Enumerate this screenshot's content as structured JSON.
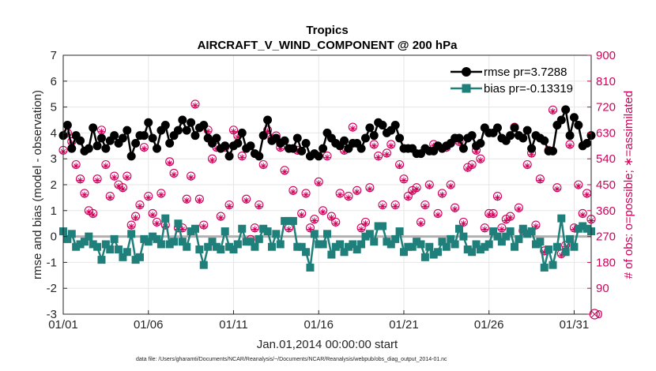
{
  "chart_data": {
    "type": "line",
    "title": "Tropics",
    "subtitle": "AIRCRAFT_V_WIND_COMPONENT @ 200 hPa",
    "xlabel": "Jan.01,2014 00:00:00 start",
    "ylabel": "rmse and bias (model - observation)",
    "y2label": "# of obs: o=possible; ∗=assimilated",
    "footnote": "data file: /Users/gharamti/Documents/NCAR/Reanalysis/~/Documents/NCAR/Reanalysis/webpub/obs_diag_output_2014-01.nc",
    "xlim": [
      0,
      31
    ],
    "ylim": [
      -3,
      7
    ],
    "y2lim": [
      0,
      900
    ],
    "x_ticks": [
      0,
      5,
      10,
      15,
      20,
      25,
      30
    ],
    "x_tick_labels": [
      "01/01",
      "01/06",
      "01/11",
      "01/16",
      "01/21",
      "01/26",
      "01/31"
    ],
    "y_ticks": [
      -3,
      -2,
      -1,
      0,
      1,
      2,
      3,
      4,
      5,
      6,
      7
    ],
    "y_tick_labels": [
      "-3",
      "-2",
      "-1",
      "0",
      "1",
      "2",
      "3",
      "4",
      "5",
      "6",
      "7"
    ],
    "y2_ticks": [
      0,
      90,
      180,
      270,
      360,
      450,
      540,
      630,
      720,
      810,
      900
    ],
    "y2_tick_labels": [
      "0",
      "90",
      "180",
      "270",
      "360",
      "450",
      "540",
      "630",
      "720",
      "810",
      "900"
    ],
    "grid": true,
    "legend_position": "top-right",
    "series": [
      {
        "name": "rmse pr=3.7288",
        "axis": "left",
        "color": "#000000",
        "marker": "circle",
        "x": [
          0.0,
          0.25,
          0.5,
          0.75,
          1.0,
          1.25,
          1.5,
          1.75,
          2.0,
          2.25,
          2.5,
          2.75,
          3.0,
          3.25,
          3.5,
          3.75,
          4.0,
          4.25,
          4.5,
          4.75,
          5.0,
          5.25,
          5.5,
          5.75,
          6.0,
          6.25,
          6.5,
          6.75,
          7.0,
          7.25,
          7.5,
          7.75,
          8.0,
          8.25,
          8.5,
          8.75,
          9.0,
          9.25,
          9.5,
          9.75,
          10.0,
          10.25,
          10.5,
          10.75,
          11.0,
          11.25,
          11.5,
          11.75,
          12.0,
          12.25,
          12.5,
          12.75,
          13.0,
          13.25,
          13.5,
          13.75,
          14.0,
          14.25,
          14.5,
          14.75,
          15.0,
          15.25,
          15.5,
          15.75,
          16.0,
          16.25,
          16.5,
          16.75,
          17.0,
          17.25,
          17.5,
          17.75,
          18.0,
          18.25,
          18.5,
          18.75,
          19.0,
          19.25,
          19.5,
          19.75,
          20.0,
          20.25,
          20.5,
          20.75,
          21.0,
          21.25,
          21.5,
          21.75,
          22.0,
          22.25,
          22.5,
          22.75,
          23.0,
          23.25,
          23.5,
          23.75,
          24.0,
          24.25,
          24.5,
          24.75,
          25.0,
          25.25,
          25.5,
          25.75,
          26.0,
          26.25,
          26.5,
          26.75,
          27.0,
          27.25,
          27.5,
          27.75,
          28.0,
          28.25,
          28.5,
          28.75,
          29.0,
          29.25,
          29.5,
          29.75,
          30.0,
          30.25,
          30.5,
          30.75,
          31.0
        ],
        "values": [
          3.9,
          4.3,
          3.4,
          3.9,
          3.7,
          3.3,
          3.4,
          4.2,
          3.5,
          3.8,
          3.4,
          3.7,
          3.9,
          3.6,
          3.8,
          4.1,
          3.1,
          3.6,
          3.9,
          3.9,
          4.4,
          3.8,
          3.4,
          4.1,
          4.3,
          3.6,
          3.9,
          4.1,
          4.5,
          4.1,
          4.4,
          3.9,
          4.2,
          4.3,
          3.8,
          3.6,
          3.8,
          3.4,
          3.5,
          3.1,
          3.5,
          3.6,
          4.0,
          3.4,
          3.5,
          3.2,
          3.1,
          3.9,
          4.5,
          3.7,
          3.8,
          3.6,
          3.7,
          3.4,
          3.4,
          3.8,
          3.3,
          3.6,
          3.1,
          3.2,
          3.1,
          3.4,
          4.0,
          3.8,
          3.6,
          3.5,
          3.7,
          3.4,
          3.6,
          3.6,
          3.4,
          3.8,
          4.2,
          3.9,
          4.4,
          4.3,
          4.0,
          4.1,
          4.3,
          3.8,
          3.4,
          3.4,
          3.4,
          3.2,
          3.2,
          3.4,
          3.3,
          3.3,
          3.5,
          3.4,
          3.5,
          3.6,
          3.8,
          3.8,
          3.4,
          3.8,
          3.9,
          3.5,
          3.6,
          4.2,
          4.0,
          4.0,
          4.2,
          3.8,
          3.7,
          3.9,
          4.2,
          3.9,
          3.8,
          4.1,
          3.4,
          3.9,
          3.8,
          3.7,
          3.3,
          3.3,
          4.3,
          4.5,
          4.9,
          3.9,
          4.6,
          4.3,
          3.5,
          3.6,
          3.9
        ]
      },
      {
        "name": "bias pr=-0.13319",
        "axis": "left",
        "color": "#1f7f7a",
        "marker": "square",
        "x": [
          0.0,
          0.25,
          0.5,
          0.75,
          1.0,
          1.25,
          1.5,
          1.75,
          2.0,
          2.25,
          2.5,
          2.75,
          3.0,
          3.25,
          3.5,
          3.75,
          4.0,
          4.25,
          4.5,
          4.75,
          5.0,
          5.25,
          5.5,
          5.75,
          6.0,
          6.25,
          6.5,
          6.75,
          7.0,
          7.25,
          7.5,
          7.75,
          8.0,
          8.25,
          8.5,
          8.75,
          9.0,
          9.25,
          9.5,
          9.75,
          10.0,
          10.25,
          10.5,
          10.75,
          11.0,
          11.25,
          11.5,
          11.75,
          12.0,
          12.25,
          12.5,
          12.75,
          13.0,
          13.25,
          13.5,
          13.75,
          14.0,
          14.25,
          14.5,
          14.75,
          15.0,
          15.25,
          15.5,
          15.75,
          16.0,
          16.25,
          16.5,
          16.75,
          17.0,
          17.25,
          17.5,
          17.75,
          18.0,
          18.25,
          18.5,
          18.75,
          19.0,
          19.25,
          19.5,
          19.75,
          20.0,
          20.25,
          20.5,
          20.75,
          21.0,
          21.25,
          21.5,
          21.75,
          22.0,
          22.25,
          22.5,
          22.75,
          23.0,
          23.25,
          23.5,
          23.75,
          24.0,
          24.25,
          24.5,
          24.75,
          25.0,
          25.25,
          25.5,
          25.75,
          26.0,
          26.25,
          26.5,
          26.75,
          27.0,
          27.25,
          27.5,
          27.75,
          28.0,
          28.25,
          28.5,
          28.75,
          29.0,
          29.25,
          29.5,
          29.75,
          30.0,
          30.25,
          30.5,
          30.75,
          31.0
        ],
        "values": [
          0.2,
          -0.1,
          0.1,
          -0.4,
          -0.3,
          -0.2,
          0.0,
          -0.3,
          -0.4,
          -0.9,
          -0.3,
          -0.5,
          -0.1,
          -0.5,
          -0.8,
          -0.6,
          0.1,
          -0.9,
          -0.8,
          -0.1,
          -0.2,
          0.0,
          -0.1,
          -0.3,
          0.7,
          -0.3,
          -0.2,
          0.5,
          -0.2,
          -0.4,
          0.2,
          0.3,
          -0.5,
          -1.1,
          -0.4,
          -0.2,
          -0.4,
          -0.5,
          0.2,
          -0.4,
          -0.5,
          -0.3,
          0.3,
          -0.2,
          -0.2,
          -0.4,
          -0.1,
          0.3,
          0.2,
          -0.4,
          0.1,
          -0.3,
          0.6,
          0.6,
          0.6,
          -0.4,
          -0.4,
          -0.6,
          -1.2,
          0.1,
          -0.3,
          -0.3,
          0.1,
          -0.7,
          -0.4,
          -0.3,
          -0.6,
          -0.4,
          -0.3,
          -0.5,
          -0.3,
          0.0,
          0.1,
          -0.2,
          0.4,
          0.4,
          -0.2,
          -0.3,
          -0.1,
          0.2,
          -0.6,
          -0.4,
          -0.4,
          -0.2,
          -0.3,
          -0.8,
          -0.4,
          -0.7,
          -0.6,
          -0.2,
          -0.4,
          -0.1,
          -0.3,
          0.3,
          0.0,
          -0.5,
          -0.6,
          -0.3,
          -0.5,
          -0.4,
          -0.3,
          0.2,
          0.0,
          -0.2,
          0.0,
          0.2,
          -0.4,
          -0.1,
          0.3,
          0.1,
          0.2,
          -0.3,
          -0.2,
          -1.2,
          -0.5,
          -1.1,
          -0.4,
          0.7,
          -0.6,
          -0.1,
          -0.4,
          0.3,
          0.4,
          0.3,
          0.2
        ]
      },
      {
        "name": "obs possible",
        "axis": "right",
        "color": "#d1005a",
        "marker": "open-circle",
        "x": [
          0.0,
          0.25,
          0.5,
          0.75,
          1.0,
          1.25,
          1.5,
          1.75,
          2.0,
          2.25,
          2.5,
          2.75,
          3.0,
          3.25,
          3.5,
          3.75,
          4.0,
          4.25,
          4.5,
          4.75,
          5.0,
          5.25,
          5.5,
          5.75,
          6.0,
          6.25,
          6.5,
          6.75,
          7.0,
          7.25,
          7.5,
          7.75,
          8.0,
          8.25,
          8.5,
          8.75,
          9.0,
          9.25,
          9.5,
          9.75,
          10.0,
          10.25,
          10.5,
          10.75,
          11.0,
          11.25,
          11.5,
          11.75,
          12.0,
          12.25,
          12.5,
          12.75,
          13.0,
          13.25,
          13.5,
          13.75,
          14.0,
          14.25,
          14.5,
          14.75,
          15.0,
          15.25,
          15.5,
          15.75,
          16.0,
          16.25,
          16.5,
          16.75,
          17.0,
          17.25,
          17.5,
          17.75,
          18.0,
          18.25,
          18.5,
          18.75,
          19.0,
          19.25,
          19.5,
          19.75,
          20.0,
          20.25,
          20.5,
          20.75,
          21.0,
          21.25,
          21.5,
          21.75,
          22.0,
          22.25,
          22.5,
          22.75,
          23.0,
          23.25,
          23.5,
          23.75,
          24.0,
          24.25,
          24.5,
          24.75,
          25.0,
          25.25,
          25.5,
          25.75,
          26.0,
          26.25,
          26.5,
          26.75,
          27.0,
          27.25,
          27.5,
          27.75,
          28.0,
          28.25,
          28.5,
          28.75,
          29.0,
          29.25,
          29.5,
          29.75,
          30.0,
          30.25,
          30.5,
          30.75,
          31.0
        ],
        "values": [
          570,
          630,
          600,
          520,
          470,
          420,
          360,
          350,
          470,
          640,
          520,
          410,
          480,
          450,
          440,
          480,
          310,
          340,
          380,
          580,
          410,
          350,
          320,
          420,
          310,
          530,
          490,
          300,
          300,
          400,
          480,
          730,
          400,
          310,
          640,
          540,
          580,
          340,
          580,
          380,
          640,
          620,
          550,
          400,
          260,
          300,
          380,
          520,
          640,
          610,
          620,
          580,
          500,
          300,
          430,
          570,
          350,
          420,
          300,
          330,
          460,
          360,
          550,
          340,
          320,
          420,
          570,
          410,
          650,
          430,
          300,
          320,
          440,
          590,
          550,
          380,
          560,
          590,
          380,
          520,
          470,
          410,
          430,
          440,
          320,
          380,
          450,
          590,
          350,
          420,
          580,
          450,
          370,
          600,
          320,
          510,
          520,
          570,
          540,
          300,
          350,
          350,
          410,
          300,
          330,
          340,
          650,
          370,
          290,
          520,
          560,
          310,
          470,
          220,
          570,
          710,
          440,
          210,
          240,
          590,
          300,
          450,
          350,
          420,
          330
        ]
      },
      {
        "name": "obs assimilated",
        "axis": "right",
        "color": "#d1005a",
        "marker": "asterisk",
        "x": [
          0.0,
          0.25,
          0.5,
          0.75,
          1.0,
          1.25,
          1.5,
          1.75,
          2.0,
          2.25,
          2.5,
          2.75,
          3.0,
          3.25,
          3.5,
          3.75,
          4.0,
          4.25,
          4.5,
          4.75,
          5.0,
          5.25,
          5.5,
          5.75,
          6.0,
          6.25,
          6.5,
          6.75,
          7.0,
          7.25,
          7.5,
          7.75,
          8.0,
          8.25,
          8.5,
          8.75,
          9.0,
          9.25,
          9.5,
          9.75,
          10.0,
          10.25,
          10.5,
          10.75,
          11.0,
          11.25,
          11.5,
          11.75,
          12.0,
          12.25,
          12.5,
          12.75,
          13.0,
          13.25,
          13.5,
          13.75,
          14.0,
          14.25,
          14.5,
          14.75,
          15.0,
          15.25,
          15.5,
          15.75,
          16.0,
          16.25,
          16.5,
          16.75,
          17.0,
          17.25,
          17.5,
          17.75,
          18.0,
          18.25,
          18.5,
          18.75,
          19.0,
          19.25,
          19.5,
          19.75,
          20.0,
          20.25,
          20.5,
          20.75,
          21.0,
          21.25,
          21.5,
          21.75,
          22.0,
          22.25,
          22.5,
          22.75,
          23.0,
          23.25,
          23.5,
          23.75,
          24.0,
          24.25,
          24.5,
          24.75,
          25.0,
          25.25,
          25.5,
          25.75,
          26.0,
          26.25,
          26.5,
          26.75,
          27.0,
          27.25,
          27.5,
          27.75,
          28.0,
          28.25,
          28.5,
          28.75,
          29.0,
          29.25,
          29.5,
          29.75,
          30.0,
          30.25,
          30.5,
          30.75,
          31.0
        ],
        "values": [
          565,
          625,
          595,
          515,
          465,
          415,
          355,
          345,
          465,
          635,
          515,
          405,
          475,
          445,
          435,
          475,
          305,
          335,
          375,
          575,
          405,
          345,
          315,
          415,
          305,
          525,
          485,
          295,
          295,
          395,
          475,
          725,
          395,
          305,
          635,
          535,
          575,
          335,
          575,
          375,
          635,
          615,
          545,
          395,
          255,
          295,
          375,
          515,
          635,
          605,
          615,
          575,
          495,
          295,
          425,
          565,
          345,
          415,
          295,
          325,
          455,
          355,
          545,
          335,
          315,
          415,
          565,
          405,
          645,
          425,
          295,
          315,
          435,
          585,
          545,
          375,
          555,
          585,
          375,
          515,
          465,
          405,
          425,
          435,
          315,
          375,
          445,
          585,
          345,
          415,
          575,
          445,
          365,
          595,
          315,
          505,
          515,
          565,
          535,
          295,
          345,
          345,
          405,
          295,
          325,
          335,
          645,
          365,
          285,
          515,
          555,
          305,
          465,
          215,
          565,
          705,
          435,
          205,
          235,
          585,
          295,
          445,
          345,
          415,
          325
        ]
      }
    ],
    "reference_line": {
      "y": 0,
      "color": "#b0b0b0"
    },
    "extra_point": {
      "name": "zero-count",
      "x": 31.2,
      "y2": 0
    }
  },
  "colors": {
    "rmse": "#000000",
    "bias": "#1f7f7a",
    "counts": "#d1005a",
    "grid": "#e6e6e6"
  }
}
